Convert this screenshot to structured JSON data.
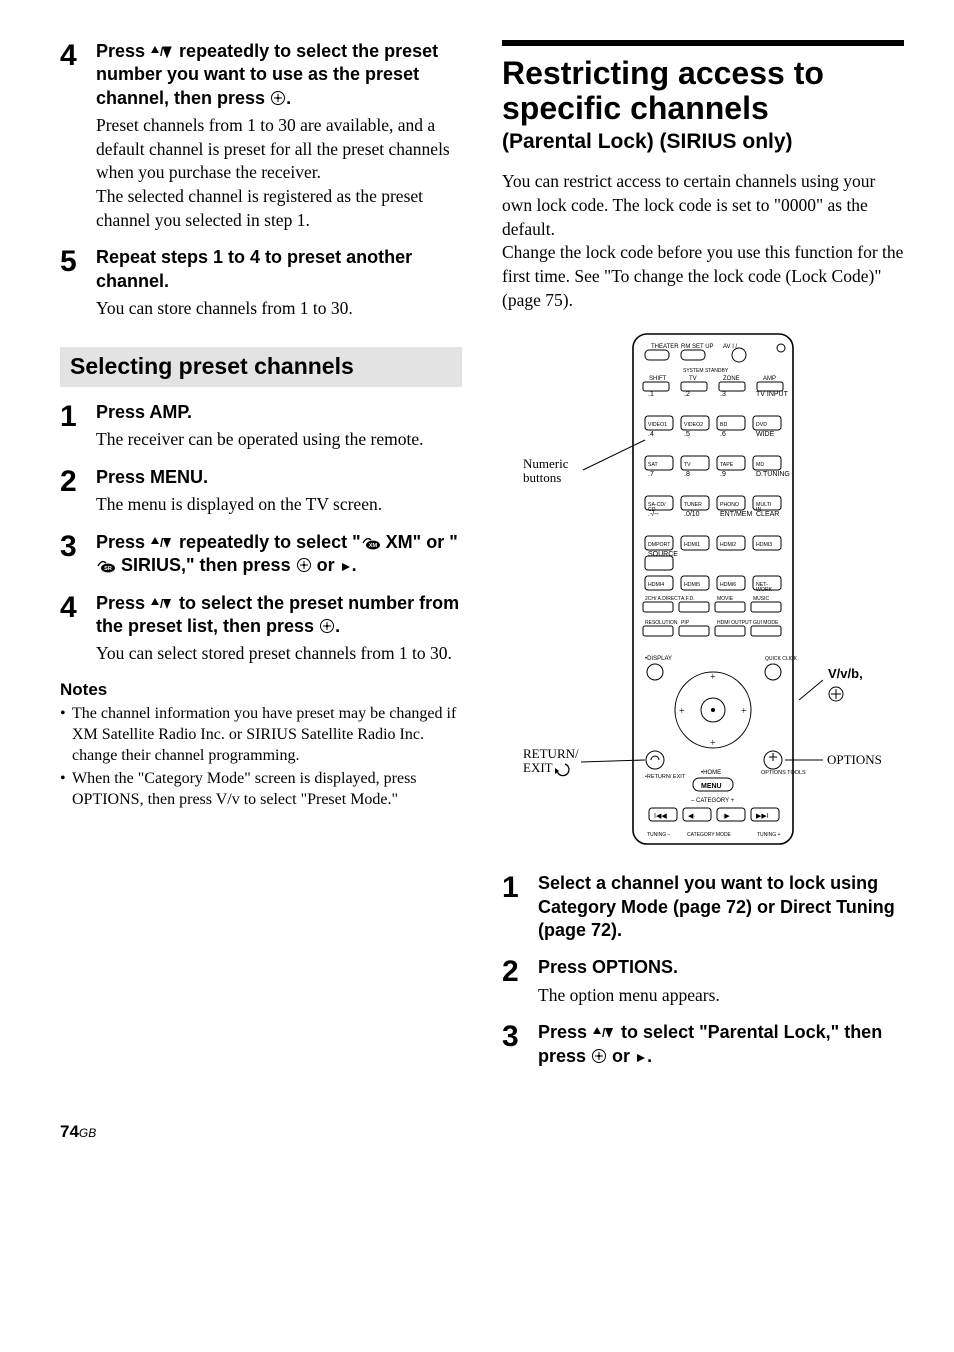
{
  "left": {
    "steps_a": [
      {
        "num": "4",
        "head_before": "Press ",
        "head_mid": " repeatedly to select the preset number you want to use as the preset channel, then press ",
        "head_after": ".",
        "text": "Preset channels from 1 to 30 are available, and a default channel is preset for all the preset channels when you purchase the receiver.\nThe selected channel is registered as the preset channel you selected in step 1."
      },
      {
        "num": "5",
        "head_plain": "Repeat steps 1 to 4 to preset another channel.",
        "text": "You can store channels from 1 to 30."
      }
    ],
    "subheading": "Selecting preset channels",
    "steps_b": [
      {
        "num": "1",
        "head_plain": "Press AMP.",
        "text": "The receiver can be operated using the remote."
      },
      {
        "num": "2",
        "head_plain": "Press MENU.",
        "text": "The menu is displayed on the TV screen."
      },
      {
        "num": "3",
        "head_before": "Press ",
        "head_mid": " repeatedly to select \"",
        "xm": " XM\" or \"",
        "sr": " SIRIUS,\" then press ",
        "head_after": " or ",
        "tail": ".",
        "text": ""
      },
      {
        "num": "4",
        "head_before": "Press ",
        "head_mid": " to select the preset number from the preset list, then press ",
        "head_after": ".",
        "text": "You can select stored preset channels from 1 to 30."
      }
    ],
    "notes_title": "Notes",
    "notes": [
      "The channel information you have preset may be changed if XM Satellite Radio Inc. or SIRIUS Satellite Radio Inc. change their channel programming.",
      "When the \"Category Mode\" screen is displayed, press OPTIONS, then press V/v to select \"Preset Mode.\""
    ]
  },
  "right": {
    "title": "Restricting access to specific channels",
    "subtitle": "(Parental Lock) (SIRIUS only)",
    "intro": "You can restrict access to certain channels using your own lock code. The lock code is set to \"0000\" as the default.\nChange the lock code before you use this function for the first time. See \"To change the lock code (Lock Code)\" (page 75).",
    "remote_labels": {
      "numeric": "Numeric buttons",
      "return": "RETURN/\nEXIT ",
      "dir": "V/v/b,",
      "options": "OPTIONS"
    },
    "remote_ui": {
      "row0": [
        "THEATER",
        "RM SET UP",
        "AV I / "
      ],
      "row0b": [
        "SHIFT",
        "SYSTEM STANDBY",
        "TV",
        "ZONE",
        "AMP"
      ],
      "grid": [
        [
          ".1",
          ".2",
          ".3",
          "TV INPUT"
        ],
        [
          "VIDEO1",
          "VIDEO2",
          "BD",
          "DVD"
        ],
        [
          ".4",
          ".5",
          ".6",
          "WIDE"
        ],
        [
          "SAT",
          "TV",
          "TAPE",
          "MD"
        ],
        [
          ".7",
          ".8",
          ".9",
          "D.TUNING"
        ],
        [
          "SA-CD/\nCD",
          "TUNER",
          "PHONO",
          "MULTI\nIN"
        ],
        [
          ".-/--",
          ".0/10",
          "ENT/MEM",
          "CLEAR"
        ],
        [
          "DMPORT",
          "HDMI1",
          "HDMI2",
          "HDMI3"
        ],
        [
          "SOURCE",
          "",
          "",
          ""
        ],
        [
          "HDMI4",
          "HDMI5",
          "HDMI6",
          "NET-\nWORK"
        ]
      ],
      "wide_row": [
        "2CH/\nA.DIRECT",
        "A.F.D.",
        "MOVIE",
        "MUSIC"
      ],
      "wide_row2": [
        "RESOLUTION",
        "PIP",
        "HDMI\nOUTPUT",
        "GUI\nMODE"
      ],
      "side": [
        "•DISPLAY",
        "QUICK\nCLICK"
      ],
      "bottom": [
        "•RETURN/\nEXIT",
        "•HOME",
        "OPTIONS\nTOOLS"
      ],
      "menu": "MENU",
      "cat": [
        "– CATEGORY +"
      ],
      "transport": [
        "I◀◀",
        "◀·",
        "·▶",
        "▶▶I"
      ],
      "tuning": [
        "TUNING –",
        "CATEGORY MODE",
        "TUNING +"
      ]
    },
    "steps": [
      {
        "num": "1",
        "head_plain": "Select a channel you want to lock using Category Mode (page 72) or Direct Tuning (page 72).",
        "text": ""
      },
      {
        "num": "2",
        "head_plain": "Press OPTIONS.",
        "text": "The option menu appears."
      },
      {
        "num": "3",
        "head_before": "Press ",
        "head_mid": " to select \"Parental Lock,\" then press ",
        "head_after": " or ",
        "tail": ".",
        "text": ""
      }
    ]
  },
  "page_number": "74",
  "page_suffix": "GB",
  "colors": {
    "text": "#000000",
    "bg": "#ffffff",
    "subhead_bg": "#e3e3e3",
    "rule": "#000000"
  },
  "typography": {
    "body_family": "Times New Roman",
    "ui_family": "Arial",
    "step_num_size_pt": 22,
    "step_head_size_pt": 13.5,
    "body_size_pt": 13,
    "h1_pt": 24,
    "h1sub_pt": 16,
    "subhead_pt": 17
  }
}
